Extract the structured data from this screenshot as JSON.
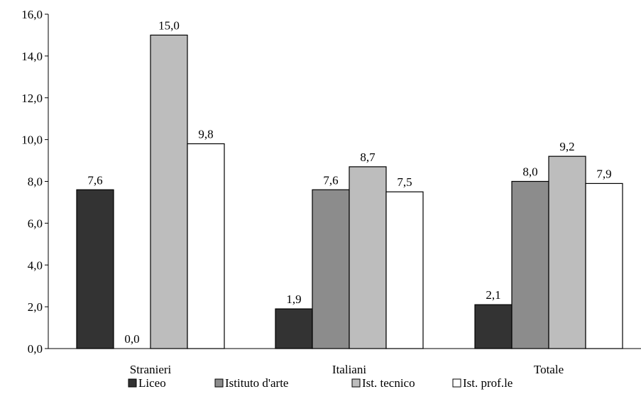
{
  "chart_data": {
    "type": "bar",
    "title": "",
    "xlabel": "",
    "ylabel": "",
    "categories": [
      "Stranieri",
      "Italiani",
      "Totale"
    ],
    "ylim": [
      0,
      16
    ],
    "yticks": [
      "0,0",
      "2,0",
      "4,0",
      "6,0",
      "8,0",
      "10,0",
      "12,0",
      "14,0",
      "16,0"
    ],
    "grid": false,
    "legend_position": "bottom",
    "series": [
      {
        "name": "Liceo",
        "color": "#333333",
        "values": [
          7.6,
          1.9,
          2.1
        ],
        "labels": [
          "7,6",
          "1,9",
          "2,1"
        ]
      },
      {
        "name": "Istituto d'arte",
        "color": "#8c8c8c",
        "values": [
          0.0,
          7.6,
          8.0
        ],
        "labels": [
          "0,0",
          "7,6",
          "8,0"
        ]
      },
      {
        "name": "Ist. tecnico",
        "color": "#bdbdbd",
        "values": [
          15.0,
          8.7,
          9.2
        ],
        "labels": [
          "15,0",
          "8,7",
          "9,2"
        ]
      },
      {
        "name": "Ist. prof.le",
        "color": "#ffffff",
        "values": [
          9.8,
          7.5,
          7.9
        ],
        "labels": [
          "9,8",
          "7,5",
          "7,9"
        ]
      }
    ]
  }
}
